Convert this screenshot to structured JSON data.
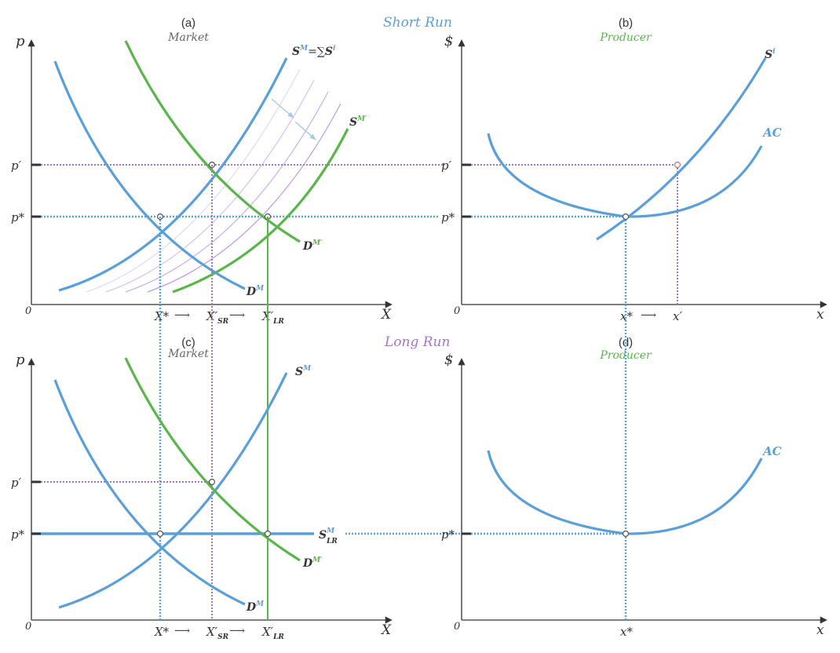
{
  "colors": {
    "blue": "#5b9fd8",
    "green": "#5ab54a",
    "purple": "#a575c8",
    "light_purple": "#cfb3e6",
    "dark": "#333333",
    "gray": "#666666"
  },
  "headers": {
    "short_run": "Short Run",
    "long_run": "Long Run"
  },
  "panel_a": {
    "tag": "(a)",
    "subtitle": "Market",
    "y_axis": "p",
    "x_axis": "X",
    "origin": "0",
    "supply_label": "S",
    "supply_sup": "M",
    "supply_eq": "=∑",
    "supply_sum": "S",
    "supply_sum_sup": "i",
    "supply_new": "S",
    "supply_new_sup": "M′",
    "demand_label": "D",
    "demand_sup": "M",
    "demand_new": "D",
    "demand_new_sup": "M′",
    "p_prime": "p′",
    "p_star": "p*",
    "x_star": "X*",
    "x_sr": "X′",
    "x_sr_sub": "SR",
    "x_lr": "X′",
    "x_lr_sub": "LR",
    "arrow": "⟶"
  },
  "panel_b": {
    "tag": "(b)",
    "subtitle": "Producer",
    "y_axis": "$",
    "x_axis": "x",
    "origin": "0",
    "supply_label": "S",
    "supply_sup": "i",
    "ac_label": "AC",
    "p_prime": "p′",
    "p_star": "p*",
    "x_star": "x*",
    "x_prime": "x′",
    "arrow": "⟶"
  },
  "panel_c": {
    "tag": "(c)",
    "subtitle": "Market",
    "y_axis": "p",
    "x_axis": "X",
    "origin": "0",
    "supply_label": "S",
    "supply_sup": "M",
    "lr_supply": "S",
    "lr_supply_sup": "M",
    "lr_supply_sub": "LR",
    "demand_label": "D",
    "demand_sup": "M",
    "demand_new": "D",
    "demand_new_sup": "M′",
    "p_prime": "p′",
    "p_star": "p*",
    "x_star": "X*",
    "x_sr": "X′",
    "x_sr_sub": "SR",
    "x_lr": "X′",
    "x_lr_sub": "LR",
    "arrow": "⟶"
  },
  "panel_d": {
    "tag": "(d)",
    "subtitle": "Producer",
    "y_axis": "$",
    "x_axis": "x",
    "origin": "0",
    "ac_label": "AC",
    "p_star": "p*",
    "x_star": "x*"
  }
}
